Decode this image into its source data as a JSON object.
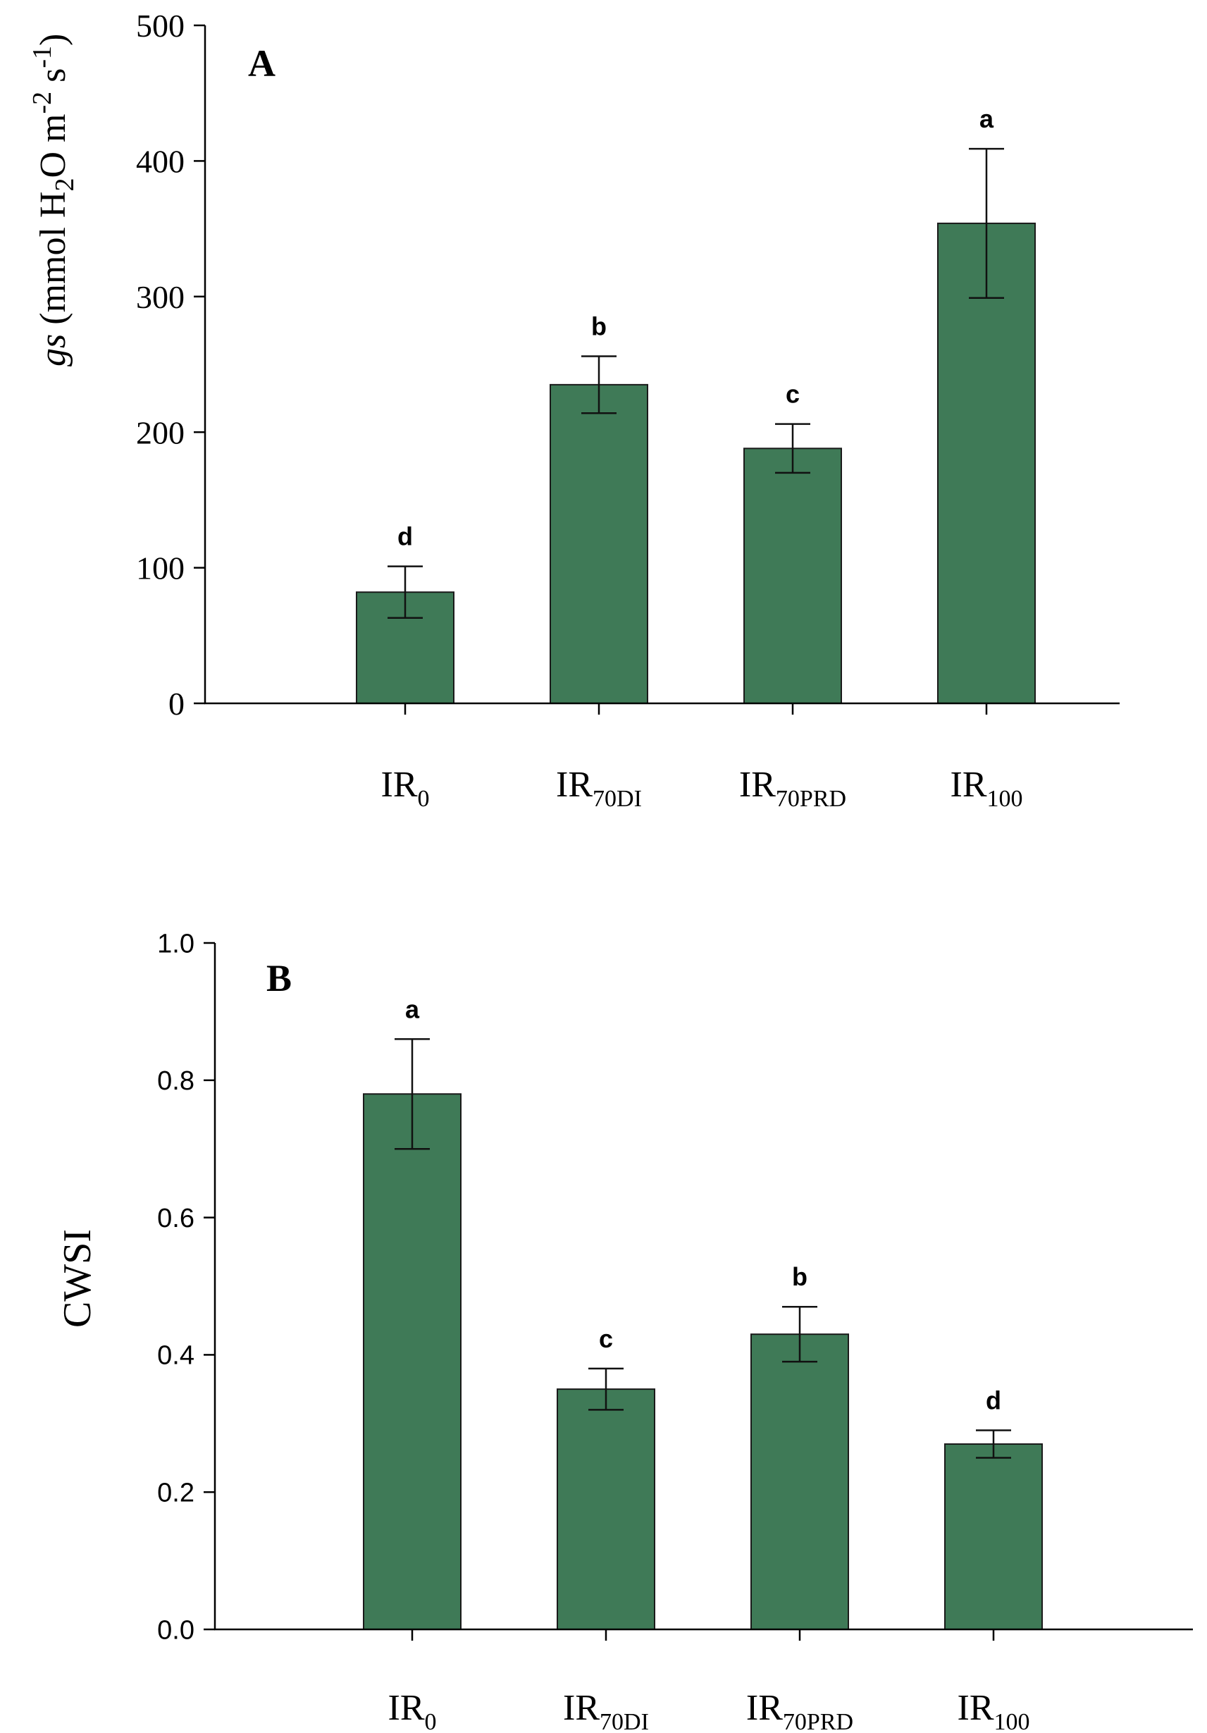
{
  "chart_data": [
    {
      "type": "bar",
      "panel_label": "A",
      "categories": [
        {
          "base": "IR",
          "sub": "0"
        },
        {
          "base": "IR",
          "sub": "70DI"
        },
        {
          "base": "IR",
          "sub": "70PRD"
        },
        {
          "base": "IR",
          "sub": "100"
        }
      ],
      "values": [
        82,
        235,
        188,
        354
      ],
      "errors": [
        19,
        21,
        18,
        55
      ],
      "letters": [
        "d",
        "b",
        "c",
        "a"
      ],
      "ylim": [
        0,
        500
      ],
      "yticks": [
        0,
        100,
        200,
        300,
        400,
        500
      ],
      "ytick_labels": [
        "0",
        "100",
        "200",
        "300",
        "400",
        "500"
      ],
      "ylabel": {
        "italic": "gs",
        "text": " (mmol H",
        "sub": "2",
        "text2": "O m",
        "sup1": "-2",
        "text3": " s",
        "sup2": "-1",
        "text4": ")"
      },
      "xlabel": "",
      "color": "#3f7a57"
    },
    {
      "type": "bar",
      "panel_label": "B",
      "categories": [
        {
          "base": "IR",
          "sub": "0"
        },
        {
          "base": "IR",
          "sub": "70DI"
        },
        {
          "base": "IR",
          "sub": "70PRD"
        },
        {
          "base": "IR",
          "sub": "100"
        }
      ],
      "values": [
        0.78,
        0.35,
        0.43,
        0.27
      ],
      "errors": [
        0.08,
        0.03,
        0.04,
        0.02
      ],
      "letters": [
        "a",
        "c",
        "b",
        "d"
      ],
      "ylim": [
        0,
        1.0
      ],
      "yticks": [
        0,
        0.2,
        0.4,
        0.6,
        0.8,
        1.0
      ],
      "ytick_labels": [
        "0.0",
        "0.2",
        "0.4",
        "0.6",
        "0.8",
        "1.0"
      ],
      "ylabel": {
        "text": "CWSI"
      },
      "xlabel": "",
      "color": "#3f7a57"
    }
  ]
}
